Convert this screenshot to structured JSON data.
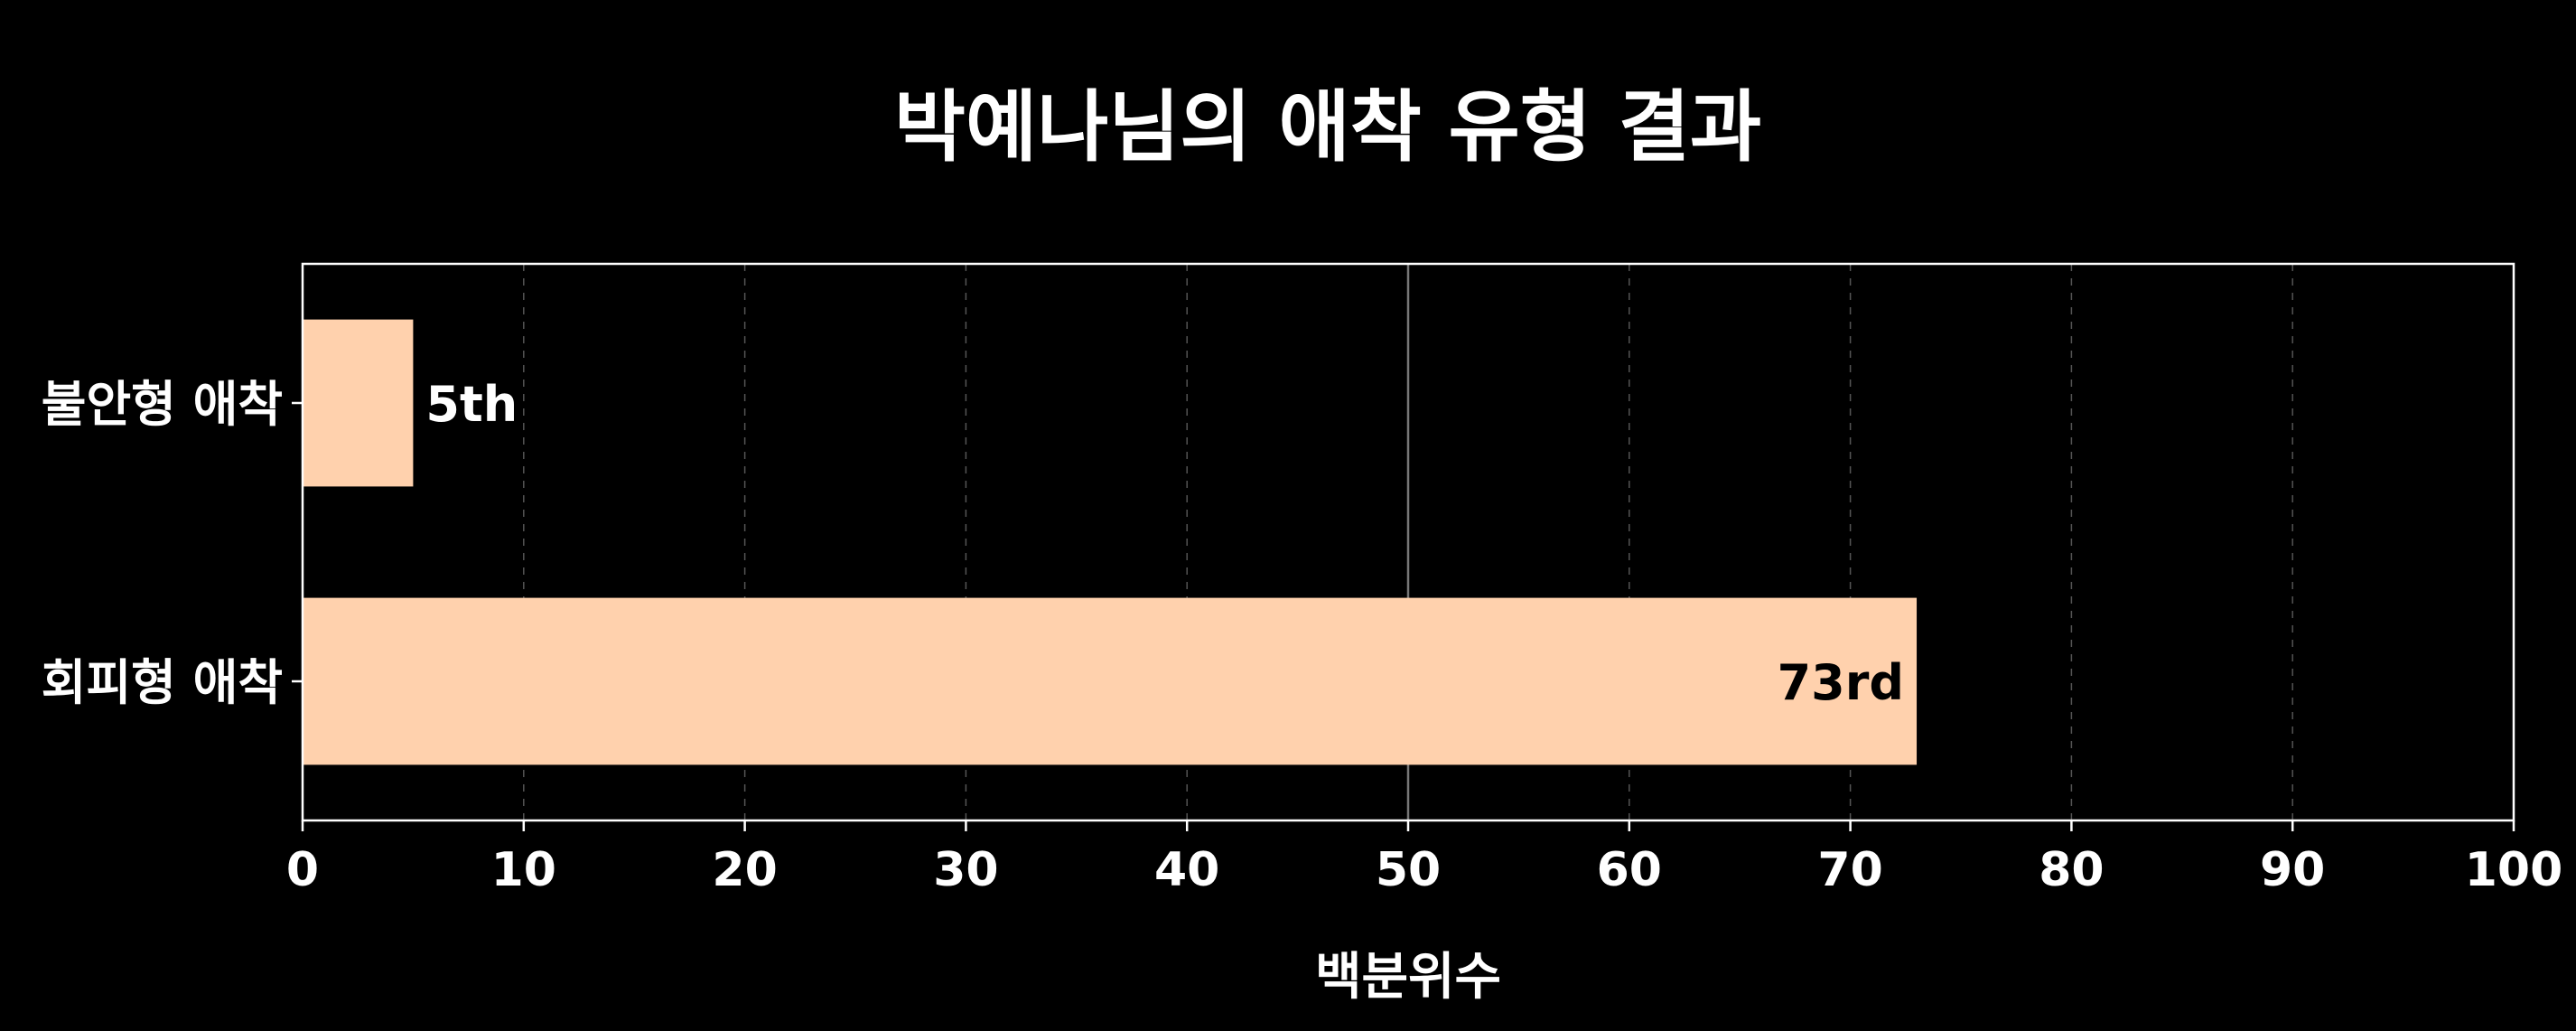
{
  "chart_data": {
    "type": "bar",
    "orientation": "horizontal",
    "title": "박예나님의 애착 유형 결과",
    "xlabel": "백분위수",
    "ylabel": "",
    "categories": [
      "불안형 애착",
      "회피형 애착"
    ],
    "values": [
      5,
      73
    ],
    "data_labels": [
      "5th",
      "73rd"
    ],
    "xlim": [
      0,
      100
    ],
    "xticks": [
      0,
      10,
      20,
      30,
      40,
      50,
      60,
      70,
      80,
      90,
      100
    ],
    "grid": "vertical dashed",
    "reference_line": 50,
    "legend": "none",
    "colors": {
      "background": "#000000",
      "bar": "#ffd1ad",
      "text": "#ffffff",
      "axis": "#ffffff",
      "grid": "#555555",
      "bar_label_inside": "#000000"
    }
  }
}
